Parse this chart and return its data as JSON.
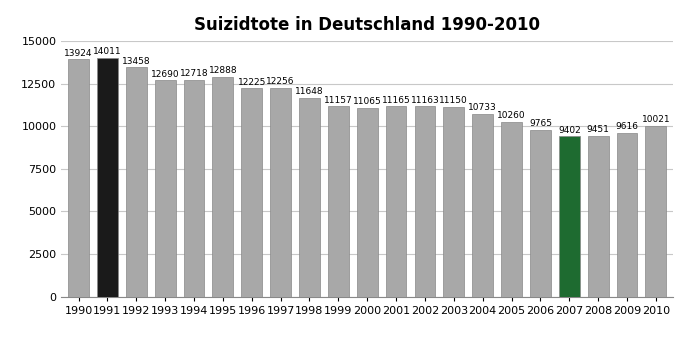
{
  "title": "Suizidtote in Deutschland 1990-2010",
  "years": [
    1990,
    1991,
    1992,
    1993,
    1994,
    1995,
    1996,
    1997,
    1998,
    1999,
    2000,
    2001,
    2002,
    2003,
    2004,
    2005,
    2006,
    2007,
    2008,
    2009,
    2010
  ],
  "values": [
    13924,
    14011,
    13458,
    12690,
    12718,
    12888,
    12225,
    12256,
    11648,
    11157,
    11065,
    11165,
    11163,
    11150,
    10733,
    10260,
    9765,
    9402,
    9451,
    9616,
    10021
  ],
  "bar_colors": [
    "#a8a8a8",
    "#1a1a1a",
    "#a8a8a8",
    "#a8a8a8",
    "#a8a8a8",
    "#a8a8a8",
    "#a8a8a8",
    "#a8a8a8",
    "#a8a8a8",
    "#a8a8a8",
    "#a8a8a8",
    "#a8a8a8",
    "#a8a8a8",
    "#a8a8a8",
    "#a8a8a8",
    "#a8a8a8",
    "#a8a8a8",
    "#1e6b30",
    "#a8a8a8",
    "#a8a8a8",
    "#a8a8a8"
  ],
  "ylim": [
    0,
    15000
  ],
  "yticks": [
    0,
    2500,
    5000,
    7500,
    10000,
    12500,
    15000
  ],
  "background_color": "#ffffff",
  "grid_color": "#c8c8c8",
  "label_fontsize": 6.5,
  "title_fontsize": 12,
  "bar_width": 0.72,
  "bar_edgecolor": "#888888",
  "bar_linewidth": 0.5
}
